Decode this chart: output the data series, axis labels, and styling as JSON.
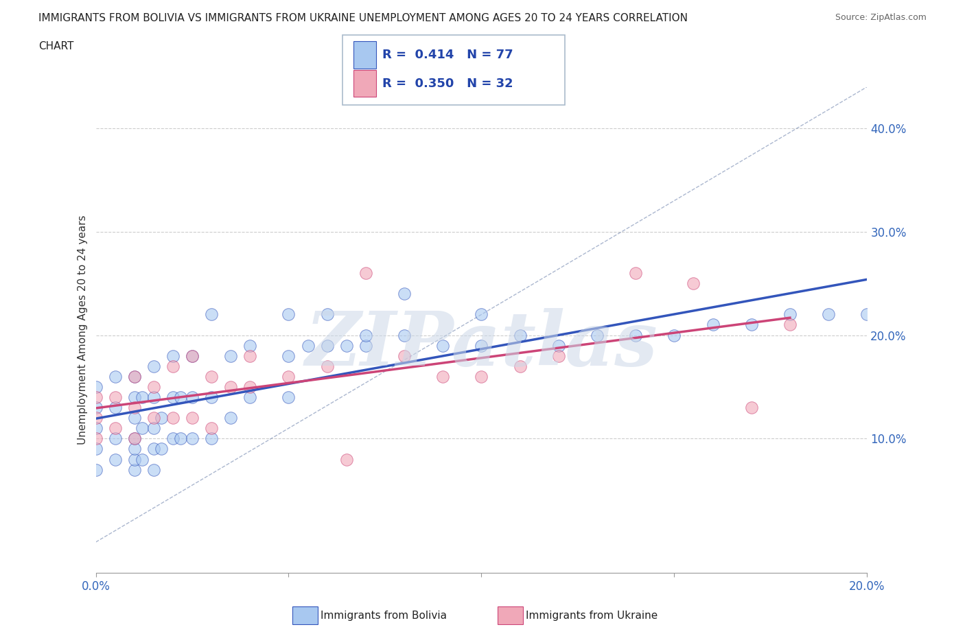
{
  "title": "IMMIGRANTS FROM BOLIVIA VS IMMIGRANTS FROM UKRAINE UNEMPLOYMENT AMONG AGES 20 TO 24 YEARS CORRELATION\nCHART",
  "source_text": "Source: ZipAtlas.com",
  "ylabel": "Unemployment Among Ages 20 to 24 years",
  "legend_label_bolivia": "Immigrants from Bolivia",
  "legend_label_ukraine": "Immigrants from Ukraine",
  "R_bolivia": 0.414,
  "N_bolivia": 77,
  "R_ukraine": 0.35,
  "N_ukraine": 32,
  "color_bolivia": "#a8c8f0",
  "color_ukraine": "#f0a8b8",
  "line_color_bolivia": "#3355bb",
  "line_color_ukraine": "#cc4477",
  "ref_line_color": "#8899bb",
  "xlim": [
    0.0,
    0.2
  ],
  "ylim": [
    -0.03,
    0.44
  ],
  "xticks": [
    0.0,
    0.05,
    0.1,
    0.15,
    0.2
  ],
  "xtick_labels_show": [
    "0.0%",
    "",
    "",
    "",
    "20.0%"
  ],
  "yticks_right": [
    0.1,
    0.2,
    0.3,
    0.4
  ],
  "bolivia_x": [
    0.0,
    0.0,
    0.0,
    0.0,
    0.0,
    0.005,
    0.005,
    0.005,
    0.005,
    0.01,
    0.01,
    0.01,
    0.01,
    0.01,
    0.01,
    0.01,
    0.012,
    0.012,
    0.012,
    0.015,
    0.015,
    0.015,
    0.015,
    0.015,
    0.017,
    0.017,
    0.02,
    0.02,
    0.02,
    0.022,
    0.022,
    0.025,
    0.025,
    0.025,
    0.03,
    0.03,
    0.03,
    0.035,
    0.035,
    0.04,
    0.04,
    0.05,
    0.05,
    0.05,
    0.055,
    0.06,
    0.06,
    0.065,
    0.07,
    0.07,
    0.08,
    0.08,
    0.09,
    0.1,
    0.1,
    0.11,
    0.12,
    0.13,
    0.14,
    0.15,
    0.16,
    0.17,
    0.18,
    0.19,
    0.2
  ],
  "bolivia_y": [
    0.07,
    0.09,
    0.11,
    0.13,
    0.15,
    0.08,
    0.1,
    0.13,
    0.16,
    0.07,
    0.08,
    0.09,
    0.1,
    0.12,
    0.14,
    0.16,
    0.08,
    0.11,
    0.14,
    0.07,
    0.09,
    0.11,
    0.14,
    0.17,
    0.09,
    0.12,
    0.1,
    0.14,
    0.18,
    0.1,
    0.14,
    0.1,
    0.14,
    0.18,
    0.1,
    0.14,
    0.22,
    0.12,
    0.18,
    0.14,
    0.19,
    0.14,
    0.18,
    0.22,
    0.19,
    0.19,
    0.22,
    0.19,
    0.19,
    0.2,
    0.2,
    0.24,
    0.19,
    0.19,
    0.22,
    0.2,
    0.19,
    0.2,
    0.2,
    0.2,
    0.21,
    0.21,
    0.22,
    0.22,
    0.22
  ],
  "ukraine_x": [
    0.0,
    0.0,
    0.0,
    0.005,
    0.005,
    0.01,
    0.01,
    0.01,
    0.015,
    0.015,
    0.02,
    0.02,
    0.025,
    0.025,
    0.03,
    0.03,
    0.035,
    0.04,
    0.04,
    0.05,
    0.06,
    0.065,
    0.07,
    0.08,
    0.09,
    0.1,
    0.11,
    0.12,
    0.14,
    0.155,
    0.17,
    0.18
  ],
  "ukraine_y": [
    0.1,
    0.12,
    0.14,
    0.11,
    0.14,
    0.1,
    0.13,
    0.16,
    0.12,
    0.15,
    0.12,
    0.17,
    0.12,
    0.18,
    0.11,
    0.16,
    0.15,
    0.15,
    0.18,
    0.16,
    0.17,
    0.08,
    0.26,
    0.18,
    0.16,
    0.16,
    0.17,
    0.18,
    0.26,
    0.25,
    0.13,
    0.21
  ],
  "watermark_text": "ZIPatlas",
  "watermark_color": "#ccd8e8",
  "background_color": "#ffffff",
  "grid_color": "#cccccc"
}
